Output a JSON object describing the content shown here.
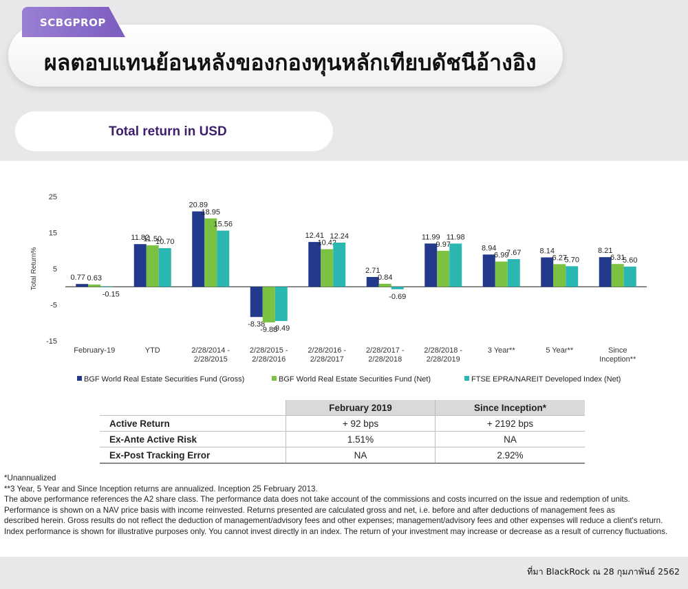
{
  "brand": "SCBGPROP",
  "title": "ผลตอบแทนย้อนหลังของกองทุนหลักเทียบดัชนีอ้างอิง",
  "subtitle": "Total return in USD",
  "chart_data": {
    "type": "bar",
    "ylabel": "Total Return%",
    "ylim": [
      -15,
      25
    ],
    "yticks": [
      25,
      15,
      5,
      -5,
      -15
    ],
    "categories": [
      [
        "February-19"
      ],
      [
        "YTD"
      ],
      [
        "2/28/2014 -",
        "2/28/2015"
      ],
      [
        "2/28/2015 -",
        "2/28/2016"
      ],
      [
        "2/28/2016 -",
        "2/28/2017"
      ],
      [
        "2/28/2017 -",
        "2/28/2018"
      ],
      [
        "2/28/2018 -",
        "2/28/2019"
      ],
      [
        "3 Year**"
      ],
      [
        "5 Year**"
      ],
      [
        "Since",
        "Inception**"
      ]
    ],
    "series": [
      {
        "name": "BGF World Real Estate Securities Fund (Gross)",
        "color": "#233a8c",
        "values": [
          0.77,
          11.82,
          20.89,
          -8.38,
          12.41,
          2.71,
          11.99,
          8.94,
          8.14,
          8.21
        ],
        "labels": [
          "0.77",
          "11.82",
          "20.89",
          "-8.38",
          "12.41",
          "2.71",
          "11.99",
          "8.94",
          "8.14",
          "8.21"
        ]
      },
      {
        "name": "BGF World Real Estate Securities Fund  (Net)",
        "color": "#7cc242",
        "values": [
          0.63,
          11.5,
          18.95,
          -9.88,
          10.42,
          0.84,
          9.97,
          6.99,
          6.27,
          6.31
        ],
        "labels": [
          "0.63",
          "11.50",
          "18.95",
          "-9.88",
          "10.42",
          "0.84",
          "9.97",
          "6.99",
          "6.27",
          "6.31"
        ]
      },
      {
        "name": "FTSE EPRA/NAREIT Developed Index (Net)",
        "color": "#2ab7b2",
        "values": [
          -0.15,
          10.7,
          15.56,
          -9.49,
          12.24,
          -0.69,
          11.98,
          7.67,
          5.7,
          5.6
        ],
        "labels": [
          "-0.15",
          "10.70",
          "15.56",
          "-9.49",
          "12.24",
          "-0.69",
          "11.98",
          "7.67",
          "5.70",
          "5.60"
        ]
      }
    ]
  },
  "table": {
    "headers": [
      "",
      "February 2019",
      "Since Inception*"
    ],
    "rows": [
      [
        "Active Return",
        "+ 92 bps",
        "+ 2192 bps"
      ],
      [
        "Ex-Ante Active Risk",
        "1.51%",
        "NA"
      ],
      [
        "Ex-Post Tracking Error",
        "NA",
        "2.92%"
      ]
    ]
  },
  "notes": [
    "*Unannualized",
    "**3 Year, 5 Year and Since Inception returns are annualized. Inception 25 February 2013.",
    "The above performance references the A2 share class. The performance data does not take account of the commissions and costs incurred on the issue and redemption of units.",
    "Performance is shown on a NAV price basis with income reinvested. Returns presented are calculated gross and net, i.e. before and after deductions of management fees as",
    "described herein. Gross results do not reflect the deduction of management/advisory fees and other expenses; management/advisory fees and other expenses will reduce a client's return.",
    "Index performance is shown for illustrative purposes only. You cannot invest directly in an index. The return of your investment may increase or decrease as a result of currency fluctuations."
  ],
  "source": "ที่มา BlackRock ณ 28 กุมภาพันธ์ 2562"
}
